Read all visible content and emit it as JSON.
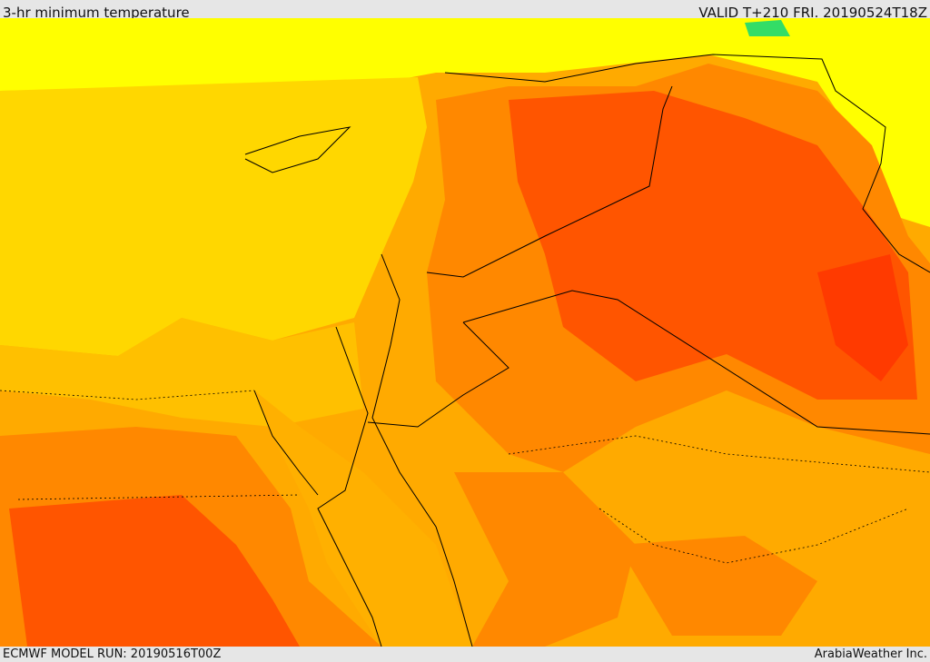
{
  "header": {
    "title": "3-hr minimum temperature",
    "valid": "VALID T+210 FRI. 20190524T18Z"
  },
  "footer": {
    "model_run": "ECMWF MODEL RUN: 20190516T00Z",
    "credit": "ArabiaWeather Inc."
  }
}
